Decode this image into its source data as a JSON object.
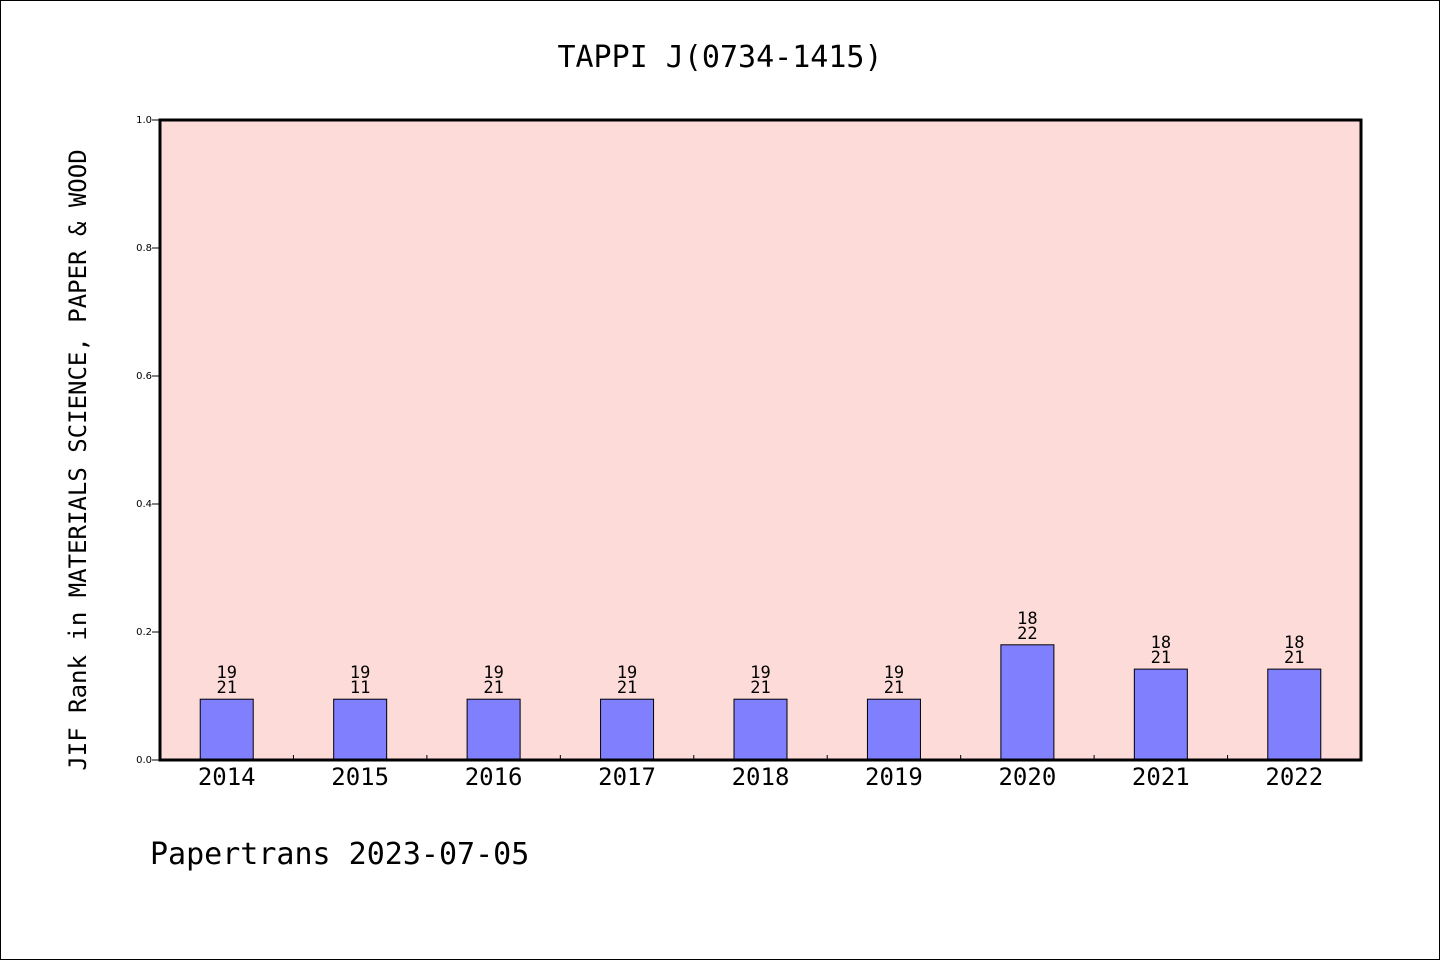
{
  "chart_data": {
    "type": "bar",
    "title": "TAPPI J(0734-1415)",
    "ylabel": "JIF Rank in MATERIALS SCIENCE, PAPER & WOOD",
    "xlabel": "",
    "categories": [
      "2014",
      "2015",
      "2016",
      "2017",
      "2018",
      "2019",
      "2020",
      "2021",
      "2022"
    ],
    "values": [
      0.095,
      0.095,
      0.095,
      0.095,
      0.095,
      0.095,
      0.18,
      0.142,
      0.142
    ],
    "labels_top": [
      "19",
      "19",
      "19",
      "19",
      "19",
      "19",
      "18",
      "18",
      "18"
    ],
    "labels_bottom": [
      "21",
      "11",
      "21",
      "21",
      "21",
      "21",
      "22",
      "21",
      "21"
    ],
    "ylim": [
      0,
      1.0
    ],
    "yticks": [
      "0.0",
      "0.2",
      "0.4",
      "0.6",
      "0.8",
      "1.0"
    ],
    "grid": false,
    "colors": {
      "plot_bg": "#fddbd8",
      "bar": "#8080ff",
      "bar_edge": "#000000"
    }
  },
  "footer": "Papertrans 2023-07-05"
}
